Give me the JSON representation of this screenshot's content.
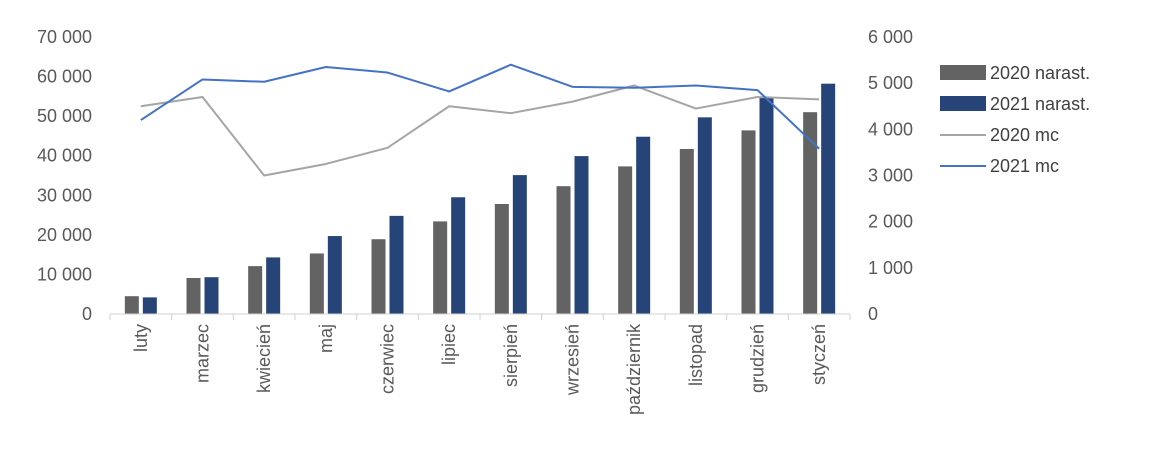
{
  "chart_data": {
    "type": "bar",
    "categories": [
      "luty",
      "marzec",
      "kwiecień",
      "maj",
      "czerwiec",
      "lipiec",
      "sierpień",
      "wrzesień",
      "październik",
      "listopad",
      "grudzień",
      "styczeń"
    ],
    "series": [
      {
        "name": "2020 narast.",
        "type": "bar",
        "axis": "left",
        "color": "#636363",
        "values": [
          4500,
          9100,
          12100,
          15300,
          18900,
          23400,
          27800,
          32300,
          37300,
          41700,
          46400,
          51000
        ]
      },
      {
        "name": "2021 narast.",
        "type": "bar",
        "axis": "left",
        "color": "#264478",
        "values": [
          4200,
          9300,
          14300,
          19700,
          24800,
          29500,
          35100,
          39900,
          44800,
          49700,
          54600,
          58200
        ]
      },
      {
        "name": "2020 mc",
        "type": "line",
        "axis": "right",
        "color": "#A5A5A5",
        "values": [
          4500,
          4700,
          3000,
          3250,
          3600,
          4500,
          4350,
          4600,
          4950,
          4450,
          4700,
          4650
        ]
      },
      {
        "name": "2021 mc",
        "type": "line",
        "axis": "right",
        "color": "#4472C4",
        "values": [
          4200,
          5080,
          5030,
          5350,
          5230,
          4820,
          5400,
          4920,
          4900,
          4950,
          4850,
          3580
        ]
      }
    ],
    "y_left": {
      "min": 0,
      "max": 70000,
      "ticks": [
        0,
        10000,
        20000,
        30000,
        40000,
        50000,
        60000,
        70000
      ],
      "tick_labels": [
        "0",
        "10 000",
        "20 000",
        "30 000",
        "40 000",
        "50 000",
        "60 000",
        "70 000"
      ]
    },
    "y_right": {
      "min": 0,
      "max": 6000,
      "ticks": [
        0,
        1000,
        2000,
        3000,
        4000,
        5000,
        6000
      ],
      "tick_labels": [
        "0",
        "1 000",
        "2 000",
        "3 000",
        "4 000",
        "5 000",
        "6 000"
      ]
    },
    "grid": false,
    "legend_position": "right",
    "title": "",
    "xlabel": "",
    "ylabel": ""
  }
}
